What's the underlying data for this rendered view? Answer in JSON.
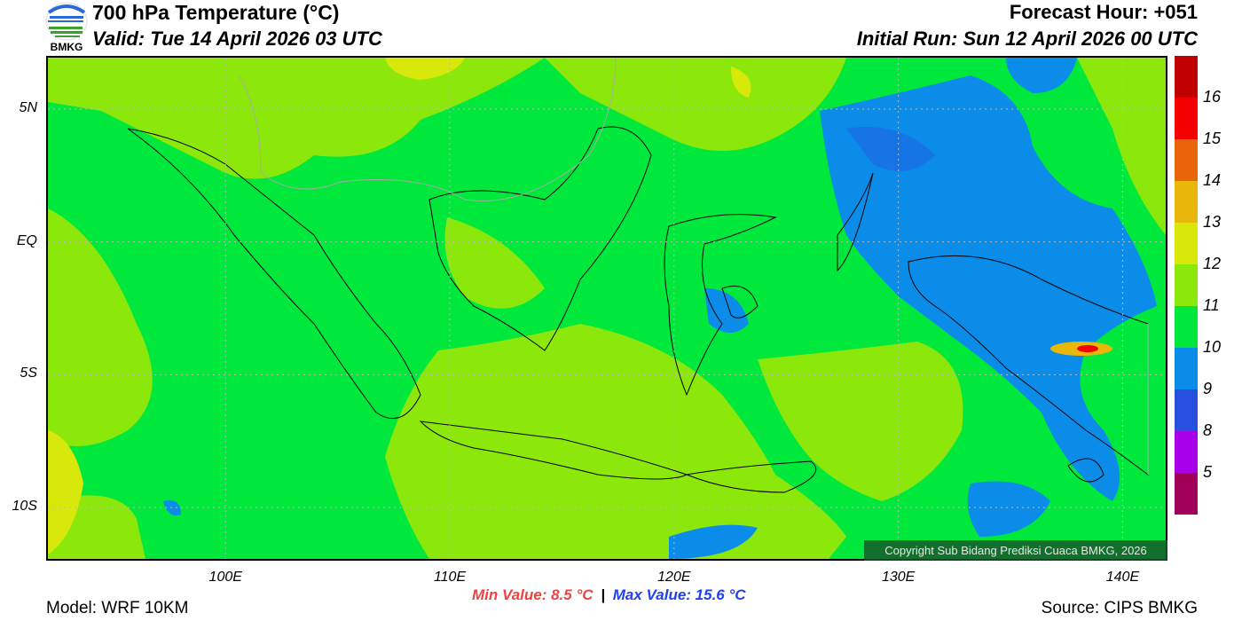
{
  "header": {
    "title": "700 hPa Temperature (°C)",
    "valid": "Valid: Tue 14 April 2026 03 UTC",
    "forecast_hour": "Forecast Hour: +051",
    "initial_run": "Initial Run: Sun 12 April 2026 00 UTC"
  },
  "logo": {
    "text": "BMKG"
  },
  "map": {
    "lon_range": [
      92,
      142
    ],
    "lat_range": [
      -12,
      7
    ],
    "lat_labels": [
      "5N",
      "EQ",
      "5S",
      "10S"
    ],
    "lat_values": [
      5,
      0,
      -5,
      -10
    ],
    "lon_labels": [
      "100E",
      "110E",
      "120E",
      "130E",
      "140E"
    ],
    "lon_values": [
      100,
      110,
      120,
      130,
      140
    ],
    "copyright": "Copyright Sub Bidang Prediksi Cuaca BMKG, 2026"
  },
  "colorbar": {
    "colors": [
      "#c00000",
      "#f50000",
      "#e8650a",
      "#e8b70a",
      "#d8e80a",
      "#8ce80a",
      "#00e83c",
      "#0a8ce8",
      "#2850e0",
      "#a800e8",
      "#a0005a"
    ],
    "labels": [
      "16",
      "15",
      "14",
      "13",
      "12",
      "11",
      "10",
      "9",
      "8",
      "5"
    ]
  },
  "stats": {
    "min": "Min Value: 8.5 °C",
    "sep": "|",
    "max": "Max Value: 15.6 °C"
  },
  "footer": {
    "model": "Model: WRF 10KM",
    "source": "Source: CIPS BMKG"
  }
}
